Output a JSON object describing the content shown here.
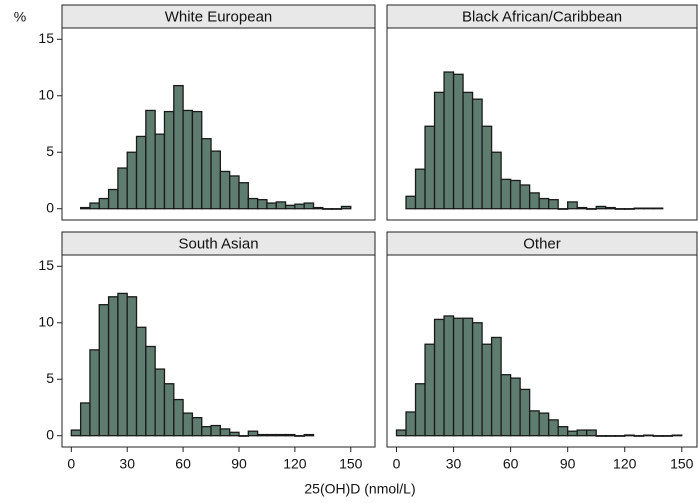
{
  "axis_labels": {
    "x": "25(OH)D (nmol/L)",
    "y": "%"
  },
  "chart_data": [
    {
      "type": "histogram",
      "title": "White European",
      "color": "#5f7c70",
      "bins": [
        5,
        10,
        15,
        20,
        25,
        30,
        35,
        40,
        45,
        50,
        55,
        60,
        65,
        70,
        75,
        80,
        85,
        90,
        95,
        100,
        105,
        110,
        115,
        120,
        125,
        130,
        135,
        140,
        145,
        150
      ],
      "values": [
        0.1,
        0.5,
        0.9,
        1.7,
        3.6,
        5.0,
        6.4,
        8.7,
        6.6,
        8.6,
        10.9,
        8.7,
        8.6,
        6.2,
        5.1,
        3.3,
        2.9,
        2.3,
        0.9,
        0.8,
        0.5,
        0.6,
        0.3,
        0.4,
        0.5,
        0.1,
        0,
        0,
        0.2
      ],
      "xlim": [
        -5,
        163
      ],
      "ylim": [
        -1,
        16
      ],
      "yticks": [
        0,
        5,
        10,
        15
      ]
    },
    {
      "type": "histogram",
      "title": "Black African/Caribbean",
      "color": "#5f7c70",
      "bins": [
        5,
        10,
        15,
        20,
        25,
        30,
        35,
        40,
        45,
        50,
        55,
        60,
        65,
        70,
        75,
        80,
        85,
        90,
        95,
        100,
        105,
        110,
        115,
        120,
        125,
        130,
        135,
        140
      ],
      "values": [
        1.1,
        3.5,
        7.3,
        10.3,
        12.1,
        11.9,
        10.3,
        9.7,
        7.3,
        5.0,
        2.6,
        2.5,
        2.1,
        1.4,
        0.9,
        0.8,
        0,
        0.6,
        0.1,
        0,
        0.2,
        0.1,
        0,
        0,
        0.05,
        0.05,
        0.05
      ],
      "xlim": [
        -5,
        158
      ],
      "ylim": [
        -1,
        16
      ]
    },
    {
      "type": "histogram",
      "title": "South Asian",
      "color": "#5f7c70",
      "bins": [
        0,
        5,
        10,
        15,
        20,
        25,
        30,
        35,
        40,
        45,
        50,
        55,
        60,
        65,
        70,
        75,
        80,
        85,
        90,
        95,
        100,
        105,
        110,
        115,
        120,
        125,
        130
      ],
      "values": [
        0.5,
        2.9,
        7.6,
        11.6,
        12.3,
        12.6,
        12.3,
        9.6,
        7.9,
        5.9,
        4.6,
        3.2,
        2.0,
        1.6,
        0.8,
        0.9,
        0.6,
        0.3,
        0,
        0.4,
        0.1,
        0.1,
        0.1,
        0.1,
        0,
        0.1
      ],
      "xlim": [
        -5,
        163
      ],
      "ylim": [
        -1,
        16
      ],
      "yticks": [
        0,
        5,
        10,
        15
      ],
      "xticks": [
        0,
        30,
        60,
        90,
        120,
        150
      ]
    },
    {
      "type": "histogram",
      "title": "Other",
      "color": "#5f7c70",
      "bins": [
        0,
        5,
        10,
        15,
        20,
        25,
        30,
        35,
        40,
        45,
        50,
        55,
        60,
        65,
        70,
        75,
        80,
        85,
        90,
        95,
        100,
        105,
        110,
        115,
        120,
        125,
        130,
        135,
        140,
        145,
        150
      ],
      "values": [
        0.5,
        2.1,
        4.6,
        8.1,
        10.3,
        10.6,
        10.4,
        10.4,
        10.0,
        8.1,
        8.7,
        5.4,
        5.1,
        4.1,
        2.2,
        2.0,
        1.4,
        0.8,
        0.4,
        0.5,
        0.5,
        0,
        0,
        0,
        0.05,
        0,
        0.05,
        0,
        0,
        0.05
      ],
      "xlim": [
        -5,
        158
      ],
      "ylim": [
        -1,
        16
      ],
      "xticks": [
        0,
        30,
        60,
        90,
        120,
        150
      ]
    }
  ]
}
